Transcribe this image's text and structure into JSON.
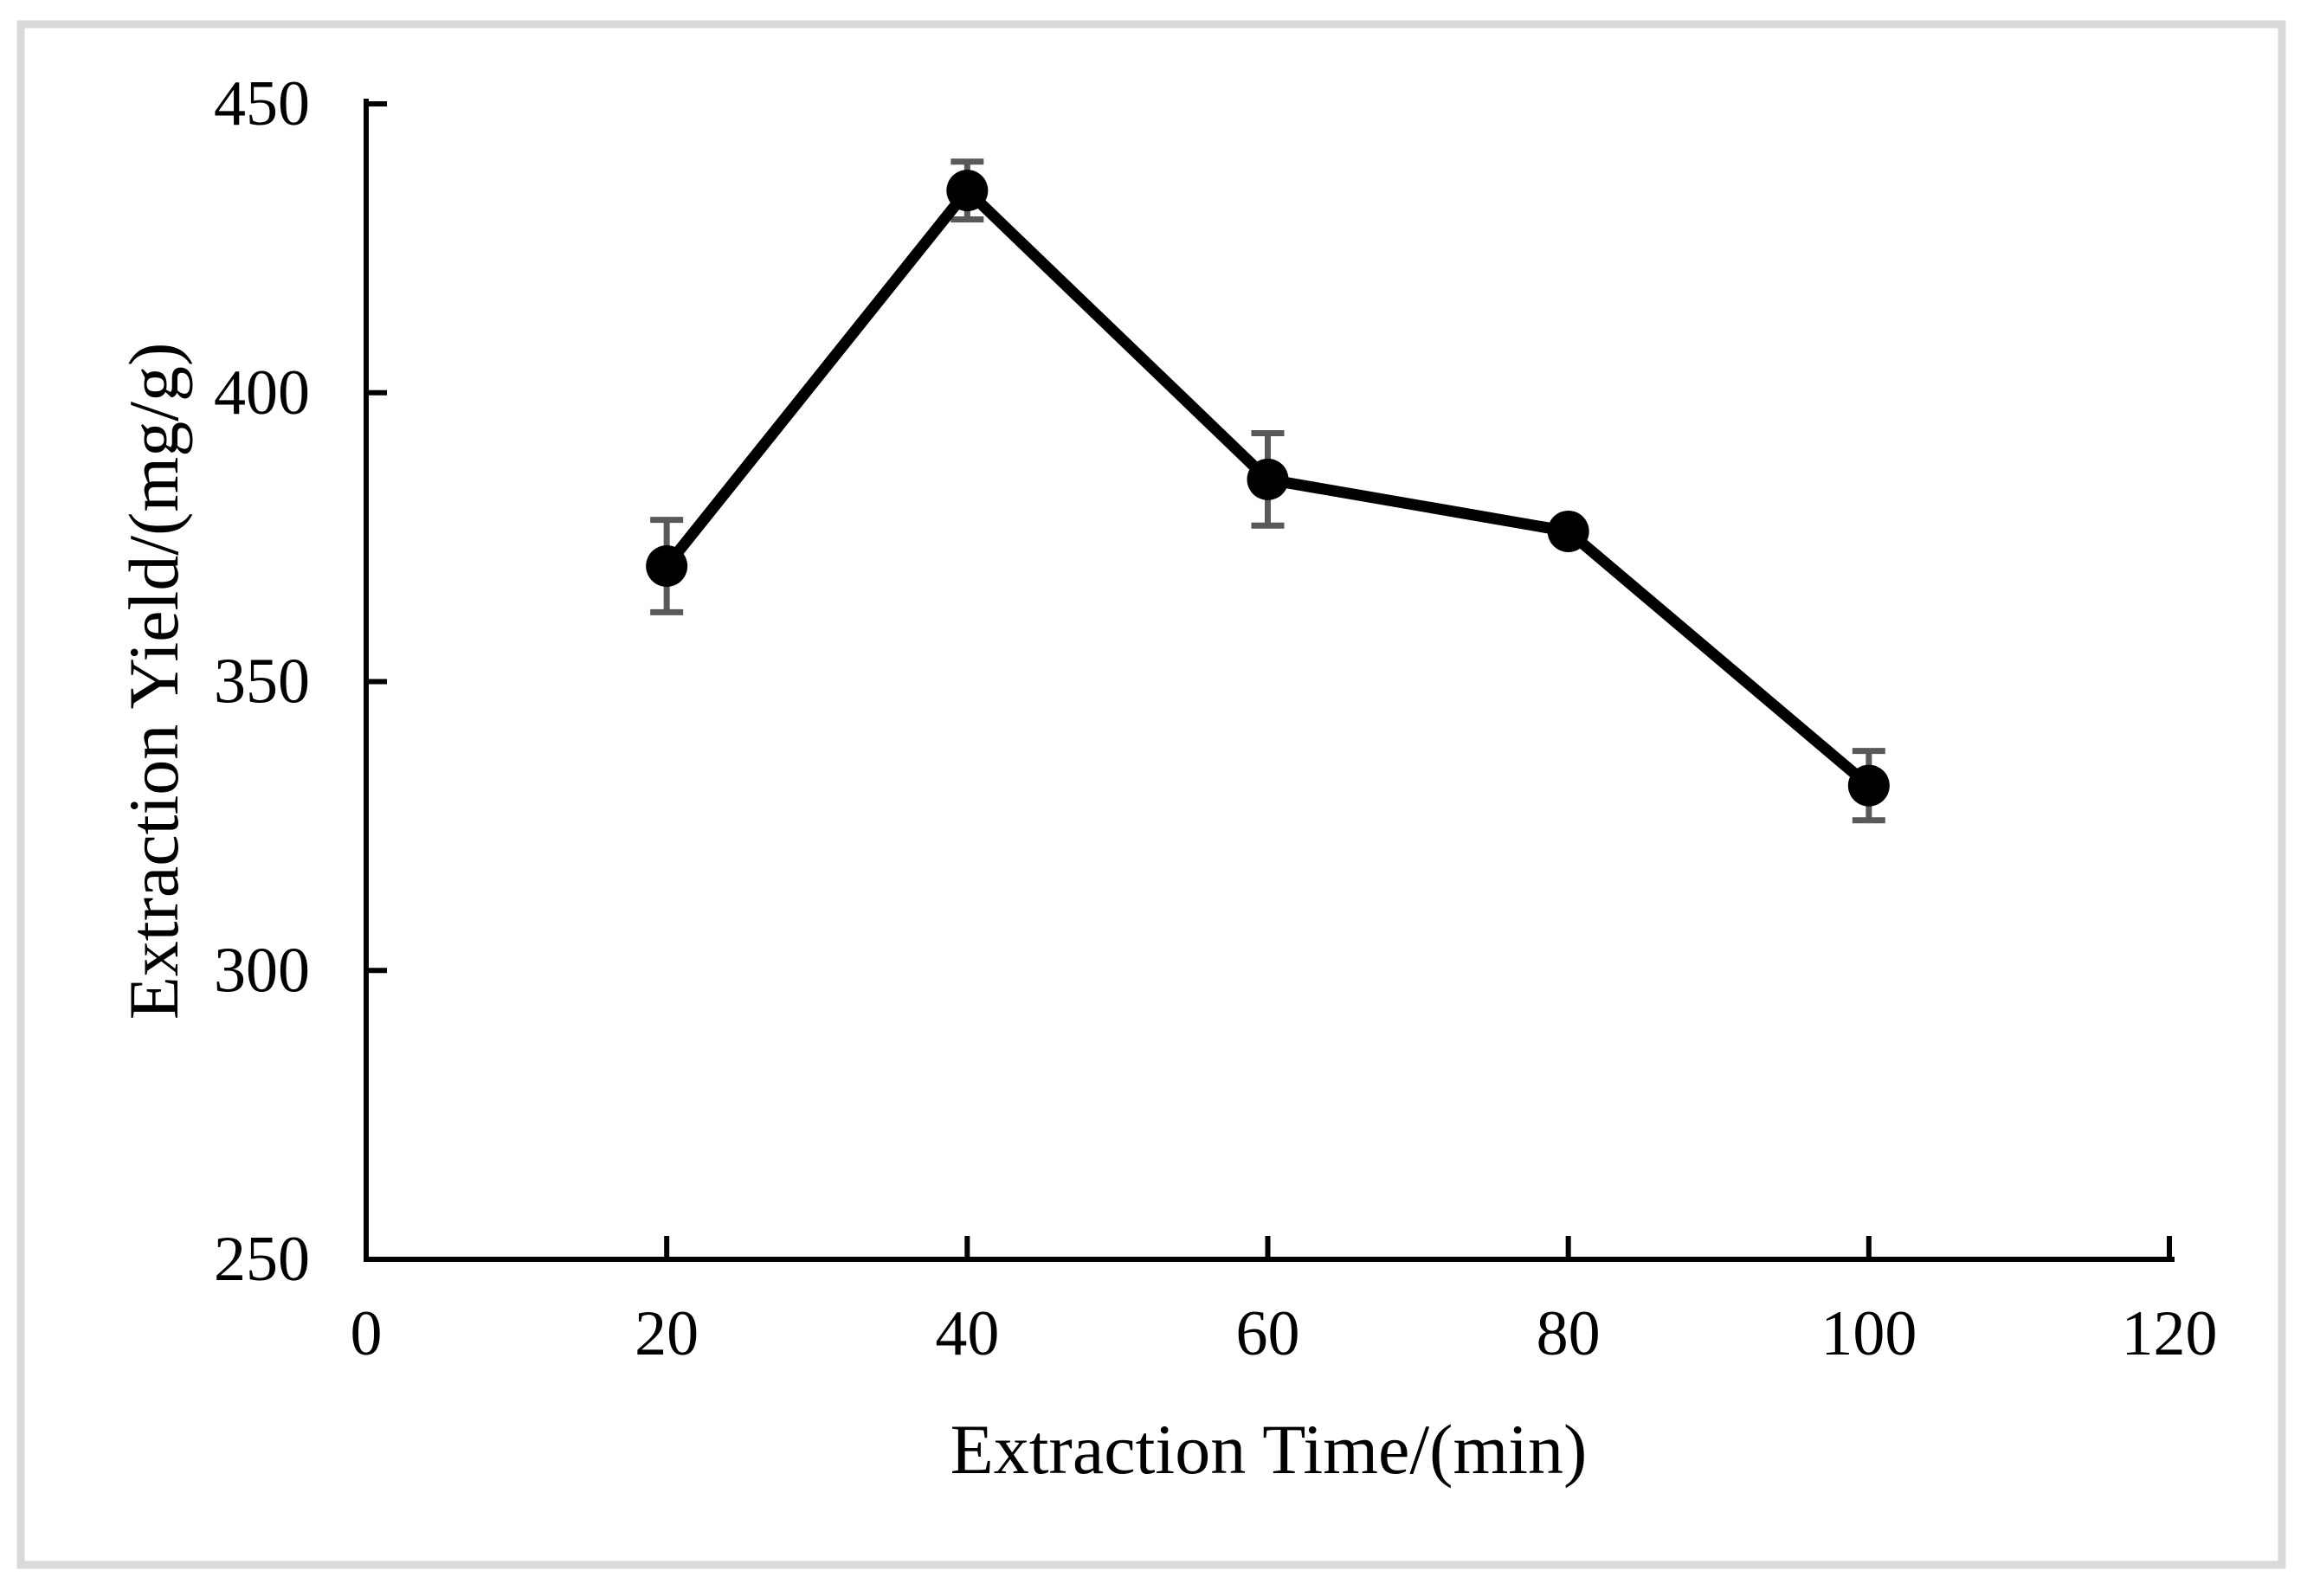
{
  "figure": {
    "background_color": "#ffffff",
    "frame_color": "#d9d9d9"
  },
  "chart_data": {
    "type": "line",
    "title": "",
    "xlabel": "Extraction Time/(min)",
    "ylabel": "Extraction Yield/(mg/g)",
    "x": [
      20,
      40,
      60,
      80,
      100
    ],
    "y": [
      370,
      435,
      385,
      376,
      332
    ],
    "y_err": [
      8,
      5,
      8,
      0,
      6
    ],
    "xlim": [
      0,
      120
    ],
    "ylim": [
      250,
      450
    ],
    "xticks": [
      0,
      20,
      40,
      60,
      80,
      100,
      120
    ],
    "yticks": [
      250,
      300,
      350,
      400,
      450
    ],
    "grid": false,
    "legend": null,
    "line_color": "#000000",
    "marker": "circle",
    "marker_color": "#000000",
    "error_bar_color": "#595959"
  }
}
